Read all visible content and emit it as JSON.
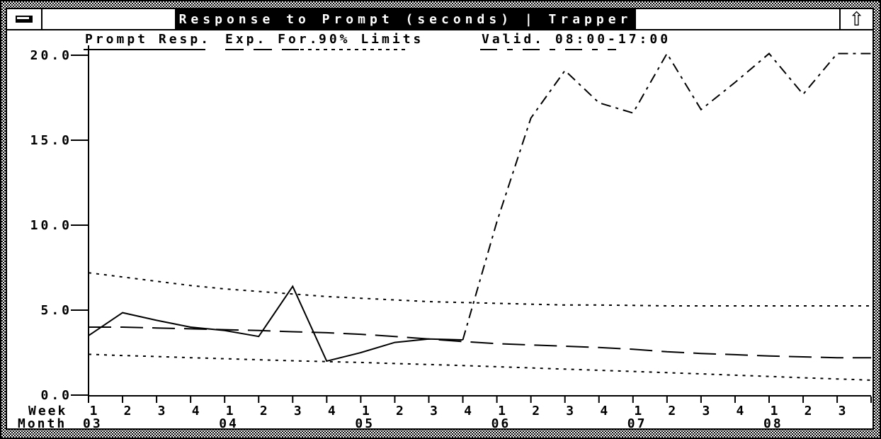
{
  "window": {
    "title": "Response to Prompt (seconds) | Trapper",
    "minimize_icon": "minimize-dash",
    "maximize_icon_glyph": "⇧"
  },
  "legend": {
    "items": [
      {
        "label": "Prompt Resp.",
        "style": "solid"
      },
      {
        "label": "Exp. For.",
        "style": "long-dash"
      },
      {
        "label": "90% Limits",
        "style": "dotted"
      },
      {
        "label": "Valid. 08:00-17:00",
        "style": "dash-dot"
      }
    ]
  },
  "axes": {
    "x_caption_week": "Week",
    "x_caption_month": "Month",
    "y_tick_labels": [
      "20.0",
      "15.0",
      "10.0",
      "5.0",
      "0.0"
    ]
  },
  "colors": {
    "foreground": "#000000",
    "background": "#ffffff"
  },
  "chart_data": {
    "type": "line",
    "title": "Response to Prompt (seconds) | Trapper",
    "ylabel": "Response to Prompt (seconds)",
    "ylim": [
      0,
      20
    ],
    "y_ticks": [
      20.0,
      15.0,
      10.0,
      5.0,
      0.0
    ],
    "week_labels": [
      "1",
      "2",
      "3",
      "4",
      "1",
      "2",
      "3",
      "4",
      "1",
      "2",
      "3",
      "4",
      "1",
      "2",
      "3",
      "4",
      "1",
      "2",
      "3",
      "4",
      "1",
      "2",
      "3"
    ],
    "months": [
      {
        "label": "03",
        "start_week_index": 0
      },
      {
        "label": "04",
        "start_week_index": 4
      },
      {
        "label": "05",
        "start_week_index": 8
      },
      {
        "label": "06",
        "start_week_index": 12
      },
      {
        "label": "07",
        "start_week_index": 16
      },
      {
        "label": "08",
        "start_week_index": 20
      }
    ],
    "series": [
      {
        "name": "Prompt Resp.",
        "style": "solid",
        "start_index": 0,
        "values": [
          3.5,
          4.85,
          4.4,
          4.0,
          3.8,
          3.45,
          6.4,
          2.0,
          2.5,
          3.1,
          3.3,
          3.25
        ]
      },
      {
        "name": "Exp. For.",
        "style": "long-dash",
        "start_index": 0,
        "values": [
          4.0,
          4.0,
          3.95,
          3.9,
          3.85,
          3.8,
          3.73,
          3.67,
          3.58,
          3.45,
          3.3,
          3.15,
          3.03,
          2.95,
          2.88,
          2.8,
          2.7,
          2.55,
          2.45,
          2.38,
          2.3,
          2.25,
          2.2,
          2.2
        ]
      },
      {
        "name": "90% Limits (upper)",
        "style": "dotted",
        "start_index": 0,
        "values": [
          7.2,
          6.95,
          6.7,
          6.45,
          6.25,
          6.1,
          5.95,
          5.8,
          5.7,
          5.6,
          5.5,
          5.45,
          5.4,
          5.35,
          5.3,
          5.3,
          5.28,
          5.25,
          5.25,
          5.25,
          5.25,
          5.25,
          5.25,
          5.25
        ]
      },
      {
        "name": "90% Limits (lower)",
        "style": "dotted",
        "start_index": 0,
        "values": [
          2.4,
          2.33,
          2.27,
          2.2,
          2.14,
          2.08,
          2.02,
          1.97,
          1.92,
          1.86,
          1.8,
          1.74,
          1.67,
          1.6,
          1.53,
          1.46,
          1.39,
          1.32,
          1.25,
          1.17,
          1.1,
          1.02,
          0.95,
          0.88
        ]
      },
      {
        "name": "Valid. 08:00-17:00",
        "style": "dash-dot",
        "start_index": 11,
        "values": [
          3.25,
          10.2,
          16.3,
          19.1,
          17.2,
          16.6,
          20.1,
          16.8,
          18.4,
          20.1,
          17.7,
          20.1,
          20.1
        ]
      }
    ]
  }
}
